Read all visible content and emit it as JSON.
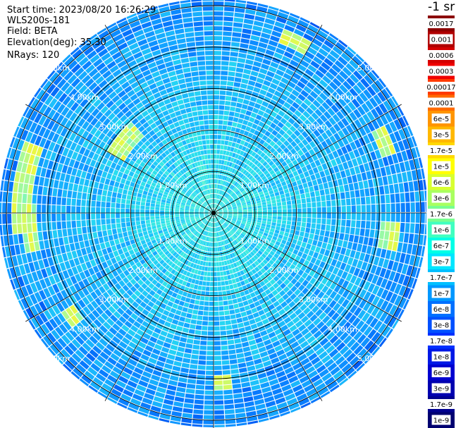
{
  "header": {
    "start_time": "Start time: 2023/08/20 16:26:29",
    "instrument": "WLS200s-181",
    "field": "Field: BETA",
    "elevation": "Elevation(deg): 35.30",
    "nrays": "NRays: 120"
  },
  "unit_label": "-1 sr",
  "chart_data": {
    "type": "heatmap",
    "projection": "polar-ppi",
    "field": "BETA",
    "n_rays": 120,
    "elevation_deg": 35.3,
    "range_ring_labels": [
      "1.00km",
      "2.00km",
      "3.00km",
      "4.00km",
      "5.00km"
    ],
    "colorbar": {
      "scale": "log",
      "labels": [
        "0.0017",
        "0.001",
        "0.0006",
        "0.0003",
        "0.00017",
        "0.0001",
        "6e-5",
        "3e-5",
        "1.7e-5",
        "1e-5",
        "6e-6",
        "3e-6",
        "1.7e-6",
        "1e-6",
        "6e-7",
        "3e-7",
        "1.7e-7",
        "1e-7",
        "6e-8",
        "3e-8",
        "1.7e-8",
        "1e-8",
        "6e-9",
        "3e-9",
        "1.7e-9",
        "1e-9"
      ],
      "colors": [
        "#8b0000",
        "#b00000",
        "#d40000",
        "#f00000",
        "#ff3a00",
        "#ff6a00",
        "#ff9500",
        "#ffb800",
        "#ffd800",
        "#ffff00",
        "#d8ff30",
        "#a8ff60",
        "#78ff90",
        "#40ffc0",
        "#00ffe6",
        "#00e6ff",
        "#00c0ff",
        "#0098ff",
        "#0070ff",
        "#0050ff",
        "#0030ff",
        "#0018e6",
        "#0000d0",
        "#0000b0",
        "#000090",
        "#000070"
      ]
    }
  }
}
